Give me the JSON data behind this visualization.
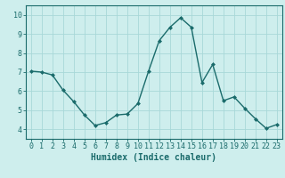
{
  "x": [
    0,
    1,
    2,
    3,
    4,
    5,
    6,
    7,
    8,
    9,
    10,
    11,
    12,
    13,
    14,
    15,
    16,
    17,
    18,
    19,
    20,
    21,
    22,
    23
  ],
  "y": [
    7.05,
    7.0,
    6.85,
    6.05,
    5.45,
    4.75,
    4.2,
    4.35,
    4.75,
    4.8,
    5.35,
    7.05,
    8.65,
    9.35,
    9.85,
    9.35,
    6.45,
    7.4,
    5.5,
    5.7,
    5.1,
    4.55,
    4.05,
    4.25
  ],
  "line_color": "#1a6b6b",
  "marker": "D",
  "marker_size": 2,
  "linewidth": 1.0,
  "xlabel": "Humidex (Indice chaleur)",
  "xlabel_fontsize": 7,
  "ylim": [
    3.5,
    10.5
  ],
  "xlim": [
    -0.5,
    23.5
  ],
  "yticks": [
    4,
    5,
    6,
    7,
    8,
    9,
    10
  ],
  "xticks": [
    0,
    1,
    2,
    3,
    4,
    5,
    6,
    7,
    8,
    9,
    10,
    11,
    12,
    13,
    14,
    15,
    16,
    17,
    18,
    19,
    20,
    21,
    22,
    23
  ],
  "background_color": "#ceeeed",
  "grid_color": "#a8d8d8",
  "tick_fontsize": 6
}
